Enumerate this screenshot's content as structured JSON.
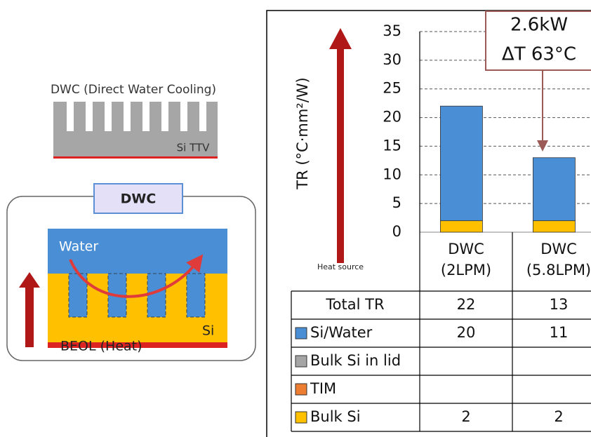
{
  "diagram": {
    "heading": "DWC (Direct Water Cooling)",
    "block_label": "Si TTV",
    "box_label": "DWC",
    "water_label": "Water",
    "si_label": "Si",
    "heat_label": "BEOL (Heat)"
  },
  "chart_data": {
    "type": "bar",
    "stacked": true,
    "ylabel": "TR (°C·mm²/W)",
    "side_arrow_label": "Heat source",
    "annotation": [
      "2.6kW",
      "ΔT 63°C"
    ],
    "categories": [
      "DWC (2LPM)",
      "DWC (5.8LPM)"
    ],
    "series": [
      {
        "name": "Si/Water",
        "color": "#4a8fd6",
        "values": [
          20,
          11
        ]
      },
      {
        "name": "Bulk Si in lid",
        "color": "#a5a5a5",
        "values": [
          null,
          null
        ]
      },
      {
        "name": "TIM",
        "color": "#ed7d31",
        "values": [
          null,
          null
        ]
      },
      {
        "name": "Bulk Si",
        "color": "#ffc000",
        "values": [
          2,
          2
        ]
      }
    ],
    "total_label": "Total TR",
    "totals": [
      22,
      13
    ],
    "ylim": [
      0,
      35
    ],
    "yticks": [
      0,
      5,
      10,
      15,
      20,
      25,
      30,
      35
    ],
    "grid": true
  }
}
